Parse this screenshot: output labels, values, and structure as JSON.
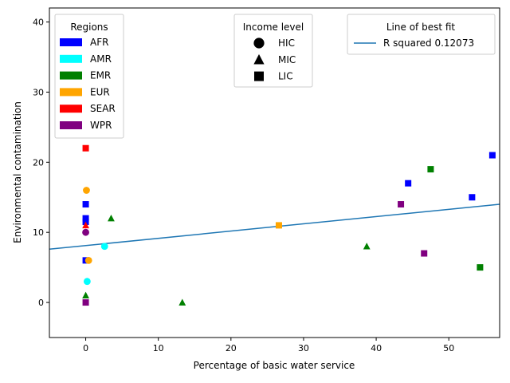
{
  "chart_data": {
    "type": "scatter",
    "xlabel": "Percentage of basic water service",
    "ylabel": "Environmental contamination",
    "xlim": [
      -5,
      57
    ],
    "ylim": [
      -5,
      42
    ],
    "xticks": [
      "0",
      "10",
      "20",
      "30",
      "40",
      "50"
    ],
    "yticks": [
      "0",
      "10",
      "20",
      "30",
      "40"
    ],
    "grid": false,
    "regions_legend": {
      "title": "Regions",
      "placement": "top-left",
      "items": [
        {
          "label": "AFR",
          "color": "#0000ff"
        },
        {
          "label": "AMR",
          "color": "#00ffff"
        },
        {
          "label": "EMR",
          "color": "#008000"
        },
        {
          "label": "EUR",
          "color": "#ffa500"
        },
        {
          "label": "SEAR",
          "color": "#ff0000"
        },
        {
          "label": "WPR",
          "color": "#800080"
        }
      ]
    },
    "income_legend": {
      "title": "Income level",
      "placement": "top-center",
      "items": [
        {
          "label": "HIC",
          "marker": "circle"
        },
        {
          "label": "MIC",
          "marker": "triangle"
        },
        {
          "label": "LIC",
          "marker": "square"
        }
      ]
    },
    "fit_legend": {
      "title": "Line of best fit",
      "placement": "top-right",
      "label": "R squared 0.12073",
      "color": "#1f77b4"
    },
    "fit_line": {
      "x": [
        -5,
        57
      ],
      "y": [
        7.6,
        14.0
      ]
    },
    "points": [
      {
        "x": 0,
        "y": 14,
        "region": "AFR",
        "income": "LIC"
      },
      {
        "x": 0,
        "y": 12,
        "region": "AFR",
        "income": "LIC"
      },
      {
        "x": 0,
        "y": 11.5,
        "region": "AFR",
        "income": "LIC"
      },
      {
        "x": 0,
        "y": 6,
        "region": "AFR",
        "income": "LIC"
      },
      {
        "x": 44.4,
        "y": 17,
        "region": "AFR",
        "income": "LIC"
      },
      {
        "x": 53.2,
        "y": 15,
        "region": "AFR",
        "income": "LIC"
      },
      {
        "x": 56,
        "y": 21,
        "region": "AFR",
        "income": "LIC"
      },
      {
        "x": 2.6,
        "y": 8,
        "region": "AMR",
        "income": "HIC"
      },
      {
        "x": 0.2,
        "y": 3,
        "region": "AMR",
        "income": "HIC"
      },
      {
        "x": 3.5,
        "y": 12,
        "region": "EMR",
        "income": "MIC"
      },
      {
        "x": 0,
        "y": 1,
        "region": "EMR",
        "income": "MIC"
      },
      {
        "x": 13.3,
        "y": 0,
        "region": "EMR",
        "income": "MIC"
      },
      {
        "x": 38.7,
        "y": 8,
        "region": "EMR",
        "income": "MIC"
      },
      {
        "x": 47.5,
        "y": 19,
        "region": "EMR",
        "income": "LIC"
      },
      {
        "x": 54.3,
        "y": 5,
        "region": "EMR",
        "income": "LIC"
      },
      {
        "x": 0.1,
        "y": 16,
        "region": "EUR",
        "income": "HIC"
      },
      {
        "x": 0.4,
        "y": 6,
        "region": "EUR",
        "income": "HIC"
      },
      {
        "x": 26.6,
        "y": 11,
        "region": "EUR",
        "income": "LIC"
      },
      {
        "x": 0,
        "y": 22,
        "region": "SEAR",
        "income": "LIC"
      },
      {
        "x": 0,
        "y": 11,
        "region": "SEAR",
        "income": "MIC"
      },
      {
        "x": 0,
        "y": 10,
        "region": "WPR",
        "income": "HIC"
      },
      {
        "x": 0,
        "y": 0,
        "region": "WPR",
        "income": "LIC"
      },
      {
        "x": 43.4,
        "y": 14,
        "region": "WPR",
        "income": "LIC"
      },
      {
        "x": 46.6,
        "y": 7,
        "region": "WPR",
        "income": "LIC"
      }
    ]
  }
}
